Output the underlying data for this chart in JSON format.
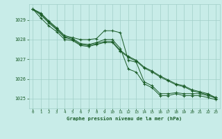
{
  "title": "Graphe pression niveau de la mer (hPa)",
  "background_color": "#c8ece8",
  "grid_color": "#a0cfc8",
  "line_color": "#1a5c28",
  "xlim": [
    -0.5,
    23.5
  ],
  "ylim": [
    1024.5,
    1029.8
  ],
  "yticks": [
    1025,
    1026,
    1027,
    1028,
    1029
  ],
  "xticks": [
    0,
    1,
    2,
    3,
    4,
    5,
    6,
    7,
    8,
    9,
    10,
    11,
    12,
    13,
    14,
    15,
    16,
    17,
    18,
    19,
    20,
    21,
    22,
    23
  ],
  "series": [
    [
      1029.55,
      1029.35,
      1028.95,
      1028.6,
      1028.2,
      1028.1,
      1028.0,
      1028.0,
      1028.05,
      1028.45,
      1028.45,
      1028.35,
      1026.95,
      1026.85,
      1025.85,
      1025.65,
      1025.25,
      1025.25,
      1025.3,
      1025.25,
      1025.25,
      1025.25,
      1025.15,
      1025.05
    ],
    [
      1029.55,
      1029.3,
      1028.9,
      1028.55,
      1028.15,
      1028.05,
      1027.8,
      1027.75,
      1027.85,
      1028.0,
      1028.0,
      1027.55,
      1026.5,
      1026.35,
      1025.75,
      1025.55,
      1025.15,
      1025.15,
      1025.25,
      1025.15,
      1025.15,
      1025.15,
      1025.05,
      1024.95
    ],
    [
      1029.55,
      1029.25,
      1028.85,
      1028.5,
      1028.1,
      1028.0,
      1027.75,
      1027.7,
      1027.8,
      1027.9,
      1027.9,
      1027.45,
      1027.15,
      1026.95,
      1026.6,
      1026.4,
      1026.15,
      1025.95,
      1025.75,
      1025.65,
      1025.45,
      1025.35,
      1025.25,
      1025.05
    ],
    [
      1029.55,
      1029.1,
      1028.7,
      1028.4,
      1028.0,
      1027.95,
      1027.7,
      1027.65,
      1027.75,
      1027.85,
      1027.85,
      1027.4,
      1027.1,
      1026.9,
      1026.55,
      1026.35,
      1026.1,
      1025.9,
      1025.7,
      1025.6,
      1025.4,
      1025.3,
      1025.2,
      1025.0
    ]
  ]
}
